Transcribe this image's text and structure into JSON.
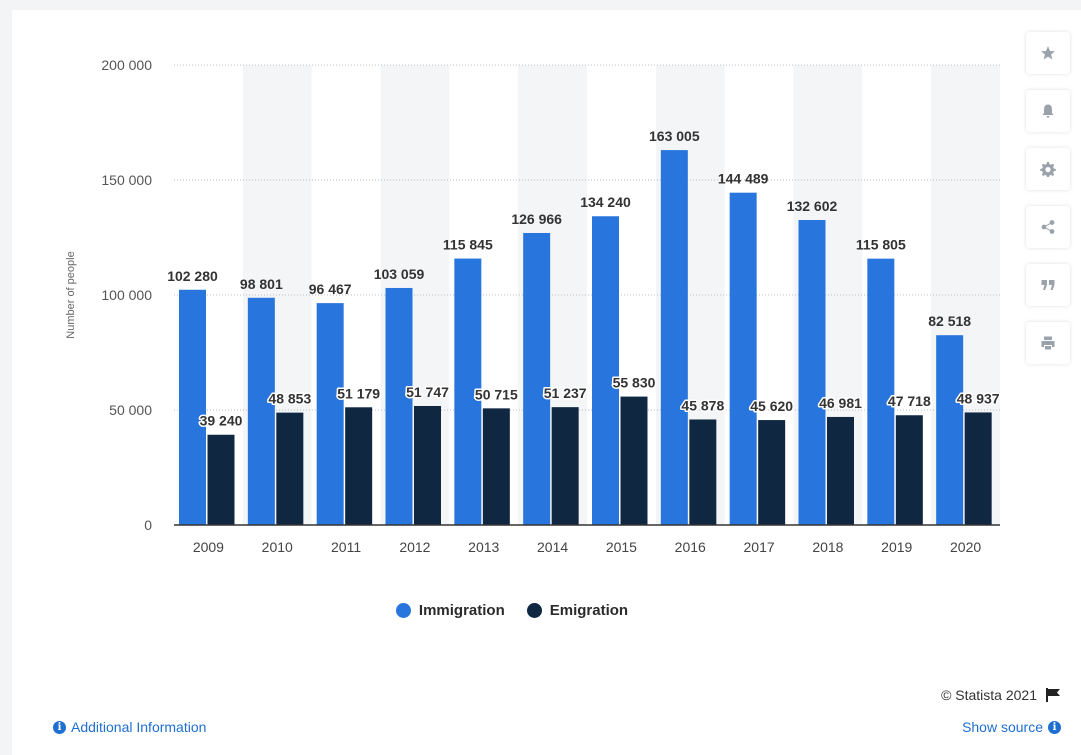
{
  "chart_data": {
    "type": "bar",
    "categories": [
      "2009",
      "2010",
      "2011",
      "2012",
      "2013",
      "2014",
      "2015",
      "2016",
      "2017",
      "2018",
      "2019",
      "2020"
    ],
    "series": [
      {
        "name": "Immigration",
        "color": "#2876dd",
        "values": [
          102280,
          98801,
          96467,
          103059,
          115845,
          126966,
          134240,
          163005,
          144489,
          132602,
          115805,
          82518
        ]
      },
      {
        "name": "Emigration",
        "color": "#0f2741",
        "values": [
          39240,
          48853,
          51179,
          51747,
          50715,
          51237,
          55830,
          45878,
          45620,
          46981,
          47718,
          48937
        ]
      }
    ],
    "data_labels": [
      [
        "102 280",
        "98 801",
        "96 467",
        "103 059",
        "115 845",
        "126 966",
        "134 240",
        "163 005",
        "144 489",
        "132 602",
        "115 805",
        "82 518"
      ],
      [
        "39 240",
        "48 853",
        "51 179",
        "51 747",
        "50 715",
        "51 237",
        "55 830",
        "45 878",
        "45 620",
        "46 981",
        "47 718",
        "48 937"
      ]
    ],
    "ylabel": "Number of people",
    "ylim": [
      0,
      200000
    ],
    "yticks": [
      0,
      50000,
      100000,
      150000,
      200000
    ],
    "ytick_labels": [
      "0",
      "50 000",
      "100 000",
      "150 000",
      "200 000"
    ],
    "grid": true,
    "legend_position": "bottom"
  },
  "footer": {
    "copyright": "© Statista 2021",
    "additional_info": "Additional Information",
    "show_source": "Show source"
  },
  "toolbar": {
    "icons": [
      "star-icon",
      "bell-icon",
      "gear-icon",
      "share-icon",
      "quote-icon",
      "print-icon"
    ]
  }
}
